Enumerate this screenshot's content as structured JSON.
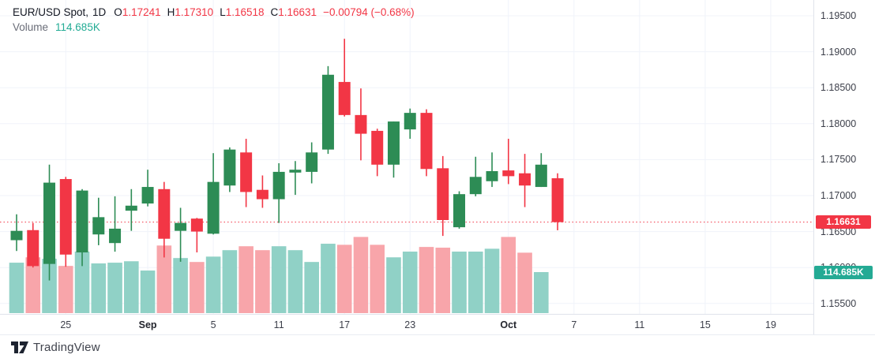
{
  "header": {
    "symbol": "EUR/USD Spot,",
    "interval": "1D",
    "ohlc": [
      {
        "label": "O",
        "value": "1.17241"
      },
      {
        "label": "H",
        "value": "1.17310"
      },
      {
        "label": "L",
        "value": "1.16518"
      },
      {
        "label": "C",
        "value": "1.16631"
      }
    ],
    "change": "−0.00794 (−0.68%)",
    "volume_label": "Volume",
    "volume_value": "114.685K"
  },
  "price_axis": {
    "tick_labels": [
      "1.19500",
      "1.19000",
      "1.18500",
      "1.18000",
      "1.17500",
      "1.17000",
      "1.16500",
      "1.16000",
      "1.15500"
    ],
    "last_price_badge": "1.16631",
    "volume_badge": "114.685K"
  },
  "time_axis": {
    "labels": [
      {
        "text": "25",
        "bar": 3,
        "month": false
      },
      {
        "text": "Sep",
        "bar": 8,
        "month": true
      },
      {
        "text": "5",
        "bar": 12,
        "month": false
      },
      {
        "text": "11",
        "bar": 16,
        "month": false
      },
      {
        "text": "17",
        "bar": 20,
        "month": false
      },
      {
        "text": "23",
        "bar": 24,
        "month": false
      },
      {
        "text": "Oct",
        "bar": 30,
        "month": true
      },
      {
        "text": "7",
        "bar": 34,
        "month": false
      },
      {
        "text": "11",
        "bar": 38,
        "month": false
      },
      {
        "text": "15",
        "bar": 42,
        "month": false
      },
      {
        "text": "19",
        "bar": 46,
        "month": false
      }
    ]
  },
  "footer": {
    "logo_text": "TradingView"
  },
  "colors": {
    "up": "#2d8c55",
    "down": "#f23645",
    "vol_up": "#90d1c6",
    "vol_down": "#f8a5aa",
    "vol_badge": "#24aa94",
    "vol_text": "#22ab94",
    "grid": "#f0f3fa",
    "axis_border": "#e0e3eb"
  },
  "chart_data": {
    "type": "candlestick+volume",
    "title": "EUR/USD Spot, 1D",
    "y_axis": {
      "min": 1.155,
      "max": 1.195,
      "tick": 0.005
    },
    "volume_unit": "K",
    "last_close": 1.16631,
    "last_volume": 114.685,
    "grid": true,
    "candles": [
      {
        "o": 1.1638,
        "h": 1.1674,
        "l": 1.1623,
        "c": 1.1651,
        "v": 141
      },
      {
        "o": 1.1652,
        "h": 1.1662,
        "l": 1.16,
        "c": 1.1602,
        "v": 156
      },
      {
        "o": 1.1605,
        "h": 1.1743,
        "l": 1.1582,
        "c": 1.1718,
        "v": 152
      },
      {
        "o": 1.1723,
        "h": 1.1726,
        "l": 1.1601,
        "c": 1.1618,
        "v": 132
      },
      {
        "o": 1.1621,
        "h": 1.1709,
        "l": 1.1602,
        "c": 1.1707,
        "v": 172
      },
      {
        "o": 1.1646,
        "h": 1.1697,
        "l": 1.1631,
        "c": 1.167,
        "v": 139
      },
      {
        "o": 1.1634,
        "h": 1.1699,
        "l": 1.1622,
        "c": 1.1654,
        "v": 141
      },
      {
        "o": 1.1679,
        "h": 1.1709,
        "l": 1.1651,
        "c": 1.1686,
        "v": 145
      },
      {
        "o": 1.1689,
        "h": 1.1736,
        "l": 1.1685,
        "c": 1.1712,
        "v": 119
      },
      {
        "o": 1.1709,
        "h": 1.1719,
        "l": 1.1614,
        "c": 1.164,
        "v": 189
      },
      {
        "o": 1.1651,
        "h": 1.1683,
        "l": 1.1608,
        "c": 1.1662,
        "v": 154
      },
      {
        "o": 1.1668,
        "h": 1.1669,
        "l": 1.1621,
        "c": 1.165,
        "v": 143
      },
      {
        "o": 1.1647,
        "h": 1.1759,
        "l": 1.1646,
        "c": 1.1719,
        "v": 158
      },
      {
        "o": 1.1714,
        "h": 1.1767,
        "l": 1.1705,
        "c": 1.1764,
        "v": 176
      },
      {
        "o": 1.176,
        "h": 1.1779,
        "l": 1.1684,
        "c": 1.1705,
        "v": 187
      },
      {
        "o": 1.1708,
        "h": 1.1728,
        "l": 1.1683,
        "c": 1.1695,
        "v": 176
      },
      {
        "o": 1.1695,
        "h": 1.1745,
        "l": 1.1662,
        "c": 1.1733,
        "v": 187
      },
      {
        "o": 1.1732,
        "h": 1.1748,
        "l": 1.1701,
        "c": 1.1736,
        "v": 176
      },
      {
        "o": 1.1733,
        "h": 1.1774,
        "l": 1.1717,
        "c": 1.176,
        "v": 143
      },
      {
        "o": 1.1764,
        "h": 1.188,
        "l": 1.1758,
        "c": 1.1868,
        "v": 194
      },
      {
        "o": 1.1858,
        "h": 1.1918,
        "l": 1.181,
        "c": 1.1812,
        "v": 191
      },
      {
        "o": 1.1812,
        "h": 1.1849,
        "l": 1.1749,
        "c": 1.1786,
        "v": 213
      },
      {
        "o": 1.179,
        "h": 1.1793,
        "l": 1.1727,
        "c": 1.1743,
        "v": 191
      },
      {
        "o": 1.1743,
        "h": 1.1803,
        "l": 1.1725,
        "c": 1.1803,
        "v": 156
      },
      {
        "o": 1.1792,
        "h": 1.1821,
        "l": 1.1779,
        "c": 1.1815,
        "v": 172
      },
      {
        "o": 1.1815,
        "h": 1.182,
        "l": 1.1727,
        "c": 1.1737,
        "v": 185
      },
      {
        "o": 1.1738,
        "h": 1.1755,
        "l": 1.1644,
        "c": 1.1666,
        "v": 183
      },
      {
        "o": 1.1656,
        "h": 1.1706,
        "l": 1.1654,
        "c": 1.1702,
        "v": 172
      },
      {
        "o": 1.1702,
        "h": 1.1754,
        "l": 1.1699,
        "c": 1.1726,
        "v": 172
      },
      {
        "o": 1.172,
        "h": 1.176,
        "l": 1.1712,
        "c": 1.1734,
        "v": 180
      },
      {
        "o": 1.1735,
        "h": 1.1779,
        "l": 1.1716,
        "c": 1.1727,
        "v": 213
      },
      {
        "o": 1.1731,
        "h": 1.1758,
        "l": 1.1684,
        "c": 1.1714,
        "v": 169
      },
      {
        "o": 1.1712,
        "h": 1.1759,
        "l": 1.1712,
        "c": 1.1743,
        "v": 114.685
      },
      {
        "o": 1.17241,
        "h": 1.1731,
        "l": 1.16518,
        "c": 1.16631,
        "v": null
      }
    ]
  }
}
